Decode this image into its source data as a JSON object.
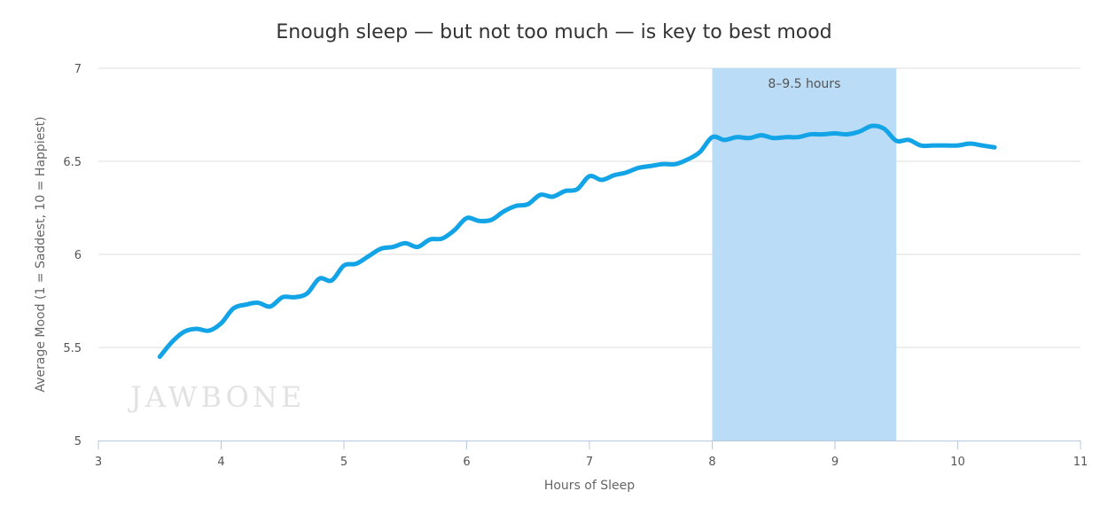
{
  "chart_data": {
    "type": "line",
    "title": "Enough sleep — but not too much — is key to best mood",
    "xlabel": "Hours of Sleep",
    "ylabel": "Average Mood (1 = Saddest, 10 = Happiest)",
    "xlim": [
      3,
      11
    ],
    "ylim": [
      5,
      7
    ],
    "x_ticks": [
      "3",
      "4",
      "5",
      "6",
      "7",
      "8",
      "9",
      "10",
      "11"
    ],
    "y_ticks": [
      "5",
      "5.5",
      "6",
      "6.5",
      "7"
    ],
    "grid": "horizontal",
    "line_color": "#12a4e6",
    "band": {
      "from": 8,
      "to": 9.5,
      "label": "8–9.5 hours",
      "color": "#bbdcf6"
    },
    "watermark": "JAWBONE",
    "x": [
      3.5,
      3.6,
      3.7,
      3.8,
      3.9,
      4.0,
      4.1,
      4.2,
      4.3,
      4.4,
      4.5,
      4.6,
      4.7,
      4.8,
      4.9,
      5.0,
      5.1,
      5.2,
      5.3,
      5.4,
      5.5,
      5.6,
      5.7,
      5.8,
      5.9,
      6.0,
      6.1,
      6.2,
      6.3,
      6.4,
      6.5,
      6.6,
      6.7,
      6.8,
      6.9,
      7.0,
      7.1,
      7.2,
      7.3,
      7.4,
      7.5,
      7.6,
      7.7,
      7.8,
      7.9,
      8.0,
      8.1,
      8.2,
      8.3,
      8.4,
      8.5,
      8.6,
      8.7,
      8.8,
      8.9,
      9.0,
      9.1,
      9.2,
      9.3,
      9.4,
      9.5,
      9.6,
      9.7,
      9.8,
      9.9,
      10.0,
      10.1,
      10.2,
      10.3
    ],
    "y": [
      5.45,
      5.53,
      5.585,
      5.6,
      5.59,
      5.63,
      5.71,
      5.73,
      5.74,
      5.72,
      5.77,
      5.77,
      5.79,
      5.87,
      5.86,
      5.94,
      5.95,
      5.99,
      6.03,
      6.04,
      6.06,
      6.04,
      6.08,
      6.085,
      6.13,
      6.195,
      6.18,
      6.185,
      6.23,
      6.26,
      6.27,
      6.32,
      6.31,
      6.34,
      6.35,
      6.42,
      6.4,
      6.425,
      6.44,
      6.465,
      6.475,
      6.485,
      6.485,
      6.51,
      6.55,
      6.63,
      6.615,
      6.63,
      6.625,
      6.64,
      6.625,
      6.63,
      6.63,
      6.645,
      6.645,
      6.65,
      6.645,
      6.66,
      6.69,
      6.675,
      6.61,
      6.615,
      6.585,
      6.585,
      6.585,
      6.585,
      6.595,
      6.585,
      6.575
    ]
  }
}
